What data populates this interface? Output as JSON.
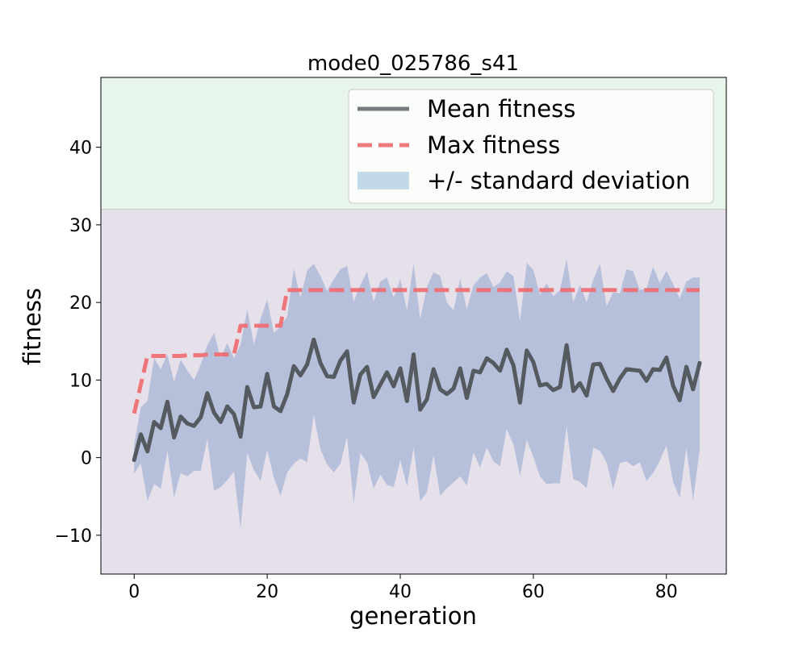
{
  "chart_data": {
    "type": "line",
    "title": "mode0_025786_s41",
    "xlabel": "generation",
    "ylabel": "fitness",
    "xlim": [
      -5,
      89
    ],
    "ylim": [
      -15,
      49
    ],
    "xticks": [
      0,
      20,
      40,
      60,
      80
    ],
    "yticks": [
      -10,
      0,
      10,
      20,
      30,
      40
    ],
    "xtick_labels": [
      "0",
      "20",
      "40",
      "60",
      "80"
    ],
    "ytick_labels": [
      "−10",
      "0",
      "10",
      "20",
      "30",
      "40"
    ],
    "grid": false,
    "legend_position": "top-right",
    "background_bands": [
      {
        "from": 32,
        "to": 49,
        "color": "#e8f5ea"
      },
      {
        "from": -15,
        "to": 32,
        "color": "#e6e0eb"
      }
    ],
    "series": [
      {
        "name": "Mean fitness",
        "style": "solid",
        "color": "#555a60",
        "values": [
          -0.3,
          3.0,
          0.8,
          4.6,
          3.8,
          7.2,
          2.6,
          5.3,
          4.4,
          4.1,
          5.2,
          8.3,
          5.8,
          4.6,
          6.6,
          5.6,
          2.7,
          9.1,
          6.5,
          6.6,
          10.8,
          6.6,
          6.0,
          8.2,
          11.8,
          10.6,
          12.0,
          15.2,
          12.2,
          10.5,
          10.4,
          12.5,
          13.7,
          7.1,
          10.7,
          11.7,
          7.8,
          9.4,
          11.0,
          9.2,
          11.5,
          7.3,
          13.3,
          6.2,
          7.5,
          11.4,
          8.8,
          8.2,
          8.9,
          11.5,
          7.7,
          11.2,
          11.0,
          12.8,
          12.2,
          11.2,
          13.9,
          11.9,
          7.1,
          13.8,
          12.3,
          9.3,
          9.5,
          8.7,
          9.1,
          14.5,
          8.6,
          9.6,
          8.0,
          12.0,
          12.1,
          10.2,
          8.6,
          10.2,
          11.4,
          11.3,
          11.2,
          9.9,
          11.4,
          11.3,
          12.9,
          9.3,
          7.4,
          11.7,
          8.8,
          12.2
        ]
      },
      {
        "name": "Max fitness",
        "style": "dashed",
        "color": "#ee6a6e",
        "values": [
          5.7,
          9.4,
          13.1,
          13.1,
          13.1,
          13.1,
          13.1,
          13.1,
          13.2,
          13.2,
          13.2,
          13.3,
          13.3,
          13.3,
          13.3,
          13.3,
          17.0,
          17.0,
          17.0,
          17.0,
          17.0,
          17.0,
          17.0,
          21.6,
          21.6,
          21.6,
          21.6,
          21.6,
          21.6,
          21.6,
          21.6,
          21.6,
          21.6,
          21.6,
          21.6,
          21.6,
          21.6,
          21.6,
          21.6,
          21.6,
          21.6,
          21.6,
          21.6,
          21.6,
          21.6,
          21.6,
          21.6,
          21.6,
          21.6,
          21.6,
          21.6,
          21.6,
          21.6,
          21.6,
          21.6,
          21.6,
          21.6,
          21.6,
          21.6,
          21.6,
          21.6,
          21.6,
          21.6,
          21.6,
          21.6,
          21.6,
          21.6,
          21.6,
          21.6,
          21.6,
          21.6,
          21.6,
          21.6,
          21.6,
          21.6,
          21.6,
          21.6,
          21.6,
          21.6,
          21.6,
          21.6,
          21.6,
          21.6,
          21.6,
          21.6,
          21.6
        ]
      },
      {
        "name": "+/- standard deviation",
        "style": "band",
        "color": "#a7b6d6",
        "values_upper": [
          1.7,
          6.5,
          7.3,
          12.8,
          11.4,
          13.3,
          9.8,
          12.6,
          11.2,
          10.0,
          12.0,
          14.5,
          16.1,
          12.8,
          14.8,
          12.8,
          14.6,
          19.1,
          14.6,
          17.9,
          20.4,
          16.1,
          16.9,
          18.2,
          24.4,
          20.6,
          24.1,
          25.0,
          23.4,
          21.5,
          23.0,
          24.3,
          24.7,
          20.1,
          22.2,
          24.0,
          20.1,
          22.7,
          23.2,
          20.6,
          23.0,
          19.0,
          25.0,
          17.9,
          22.0,
          23.9,
          23.4,
          20.0,
          19.0,
          23.1,
          19.1,
          22.2,
          23.2,
          23.8,
          22.0,
          22.6,
          24.0,
          23.4,
          17.6,
          25.1,
          24.2,
          21.0,
          22.5,
          20.8,
          21.6,
          25.6,
          20.0,
          22.3,
          20.0,
          22.9,
          25.0,
          19.5,
          21.3,
          21.2,
          24.3,
          24.0,
          21.6,
          21.8,
          24.6,
          22.5,
          24.1,
          22.4,
          20.5,
          22.7,
          23.2,
          23.2
        ],
        "values_lower": [
          -2.1,
          -0.7,
          -5.6,
          -3.4,
          -4.0,
          0.9,
          -5.1,
          -2.0,
          -2.4,
          -1.7,
          -1.7,
          2.4,
          -4.3,
          -3.8,
          -2.9,
          -1.8,
          -9.2,
          0.6,
          -1.6,
          -3.0,
          1.0,
          -2.6,
          -4.9,
          -1.9,
          -0.8,
          -0.1,
          -0.6,
          5.5,
          1.1,
          -0.9,
          -1.9,
          -0.8,
          2.7,
          -5.9,
          0.6,
          -0.6,
          -4.0,
          -2.2,
          -3.5,
          -3.8,
          -0.3,
          -3.7,
          1.3,
          -5.6,
          -4.5,
          0.3,
          -4.9,
          -3.9,
          -3.2,
          -2.4,
          -3.6,
          0.7,
          -1.3,
          1.3,
          -0.5,
          -1.1,
          3.7,
          1.7,
          -2.4,
          2.3,
          0.1,
          -2.4,
          -3.4,
          -3.3,
          -3.3,
          4.1,
          -2.8,
          -3.1,
          -3.9,
          1.3,
          0.9,
          -0.6,
          -4.1,
          -0.7,
          -0.5,
          -1.1,
          -0.6,
          -3.0,
          -2.0,
          -0.4,
          1.6,
          -3.1,
          -5.2,
          1.3,
          -5.5,
          1.0
        ]
      }
    ]
  }
}
